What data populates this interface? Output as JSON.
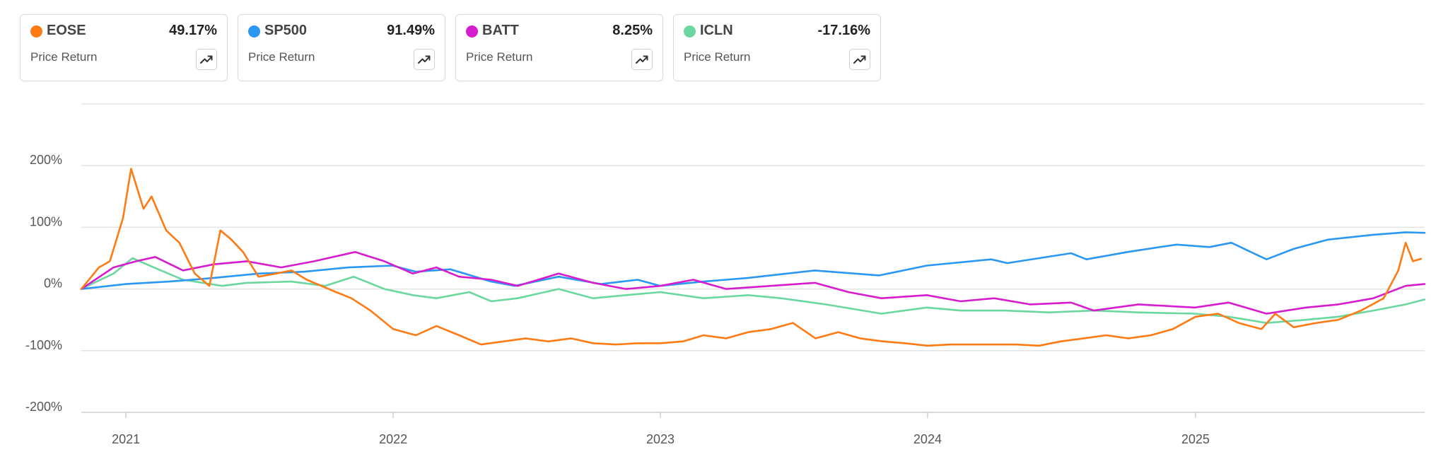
{
  "cards": [
    {
      "ticker": "EOSE",
      "value": "49.17%",
      "label": "Price Return",
      "color": "#FF7A12",
      "icon": "trend-up-icon"
    },
    {
      "ticker": "SP500",
      "value": "91.49%",
      "label": "Price Return",
      "color": "#2A97F3",
      "icon": "trend-up-icon"
    },
    {
      "ticker": "BATT",
      "value": "8.25%",
      "label": "Price Return",
      "color": "#D61CCE",
      "icon": "trend-up-icon"
    },
    {
      "ticker": "ICLN",
      "value": "-17.16%",
      "label": "Price Return",
      "color": "#6BD7A0",
      "icon": "trend-up-icon"
    }
  ],
  "chart_data": {
    "type": "line",
    "title": "",
    "xlabel": "",
    "ylabel": "",
    "y_unit": "%",
    "ylim": [
      -200,
      300
    ],
    "y_ticks": [
      200,
      100,
      0,
      -100,
      -200
    ],
    "y_tick_labels": [
      "200%",
      "100%",
      "0%",
      "-100%",
      "-200%"
    ],
    "x_ticks": [
      "2021",
      "2022",
      "2023",
      "2024",
      "2025"
    ],
    "x_range": [
      "2020-11-01",
      "2025-11-10"
    ],
    "grid": true,
    "legend": "top cards",
    "series": [
      {
        "name": "EOSE",
        "color": "#FF7A12",
        "x": [
          "2020-11-01",
          "2020-11-25",
          "2020-12-10",
          "2020-12-28",
          "2021-01-08",
          "2021-01-25",
          "2021-02-05",
          "2021-02-25",
          "2021-03-15",
          "2021-04-05",
          "2021-04-25",
          "2021-05-10",
          "2021-05-25",
          "2021-06-10",
          "2021-07-01",
          "2021-07-25",
          "2021-08-15",
          "2021-09-05",
          "2021-09-25",
          "2021-10-15",
          "2021-11-05",
          "2021-12-01",
          "2022-01-01",
          "2022-02-01",
          "2022-03-01",
          "2022-04-01",
          "2022-05-01",
          "2022-06-01",
          "2022-07-01",
          "2022-08-01",
          "2022-09-01",
          "2022-10-01",
          "2022-11-01",
          "2022-12-01",
          "2023-01-01",
          "2023-02-01",
          "2023-03-01",
          "2023-04-01",
          "2023-05-01",
          "2023-06-01",
          "2023-07-01",
          "2023-08-01",
          "2023-09-01",
          "2023-10-01",
          "2023-11-01",
          "2023-12-01",
          "2024-01-01",
          "2024-02-01",
          "2024-03-01",
          "2024-04-01",
          "2024-05-01",
          "2024-06-01",
          "2024-07-01",
          "2024-08-01",
          "2024-09-01",
          "2024-10-01",
          "2024-11-01",
          "2024-12-01",
          "2025-01-01",
          "2025-02-01",
          "2025-03-01",
          "2025-04-01",
          "2025-04-20",
          "2025-05-15",
          "2025-06-15",
          "2025-07-15",
          "2025-08-15",
          "2025-09-15",
          "2025-10-05",
          "2025-10-15",
          "2025-10-25",
          "2025-11-05"
        ],
        "y": [
          0,
          35,
          45,
          115,
          195,
          130,
          150,
          95,
          75,
          25,
          5,
          95,
          80,
          60,
          20,
          25,
          30,
          15,
          5,
          -5,
          -15,
          -35,
          -65,
          -75,
          -60,
          -75,
          -90,
          -85,
          -80,
          -85,
          -80,
          -88,
          -90,
          -88,
          -88,
          -85,
          -75,
          -80,
          -70,
          -65,
          -55,
          -80,
          -70,
          -80,
          -85,
          -88,
          -92,
          -90,
          -90,
          -90,
          -90,
          -92,
          -85,
          -80,
          -75,
          -80,
          -75,
          -65,
          -45,
          -40,
          -55,
          -65,
          -40,
          -62,
          -55,
          -50,
          -35,
          -15,
          30,
          75,
          45,
          49
        ]
      },
      {
        "name": "SP500",
        "color": "#2A97F3",
        "x": [
          "2020-11-01",
          "2021-01-01",
          "2021-03-01",
          "2021-05-01",
          "2021-07-01",
          "2021-09-01",
          "2021-11-01",
          "2021-12-31",
          "2022-02-01",
          "2022-03-20",
          "2022-05-15",
          "2022-06-16",
          "2022-08-15",
          "2022-10-12",
          "2022-12-01",
          "2023-01-01",
          "2023-03-01",
          "2023-05-01",
          "2023-07-31",
          "2023-10-27",
          "2023-12-31",
          "2024-03-28",
          "2024-04-19",
          "2024-07-15",
          "2024-08-05",
          "2024-09-30",
          "2024-12-06",
          "2025-01-20",
          "2025-02-19",
          "2025-04-08",
          "2025-05-15",
          "2025-07-01",
          "2025-09-01",
          "2025-10-15",
          "2025-11-10"
        ],
        "y": [
          0,
          8,
          12,
          18,
          25,
          28,
          35,
          38,
          28,
          32,
          12,
          5,
          20,
          8,
          15,
          5,
          12,
          18,
          30,
          22,
          38,
          48,
          42,
          58,
          48,
          60,
          72,
          68,
          75,
          48,
          65,
          80,
          88,
          92,
          91
        ]
      },
      {
        "name": "BATT",
        "color": "#D61CCE",
        "x": [
          "2020-11-01",
          "2020-12-15",
          "2021-01-15",
          "2021-02-10",
          "2021-03-20",
          "2021-05-01",
          "2021-06-15",
          "2021-08-01",
          "2021-09-15",
          "2021-11-10",
          "2021-12-20",
          "2022-01-28",
          "2022-03-01",
          "2022-04-01",
          "2022-05-15",
          "2022-06-20",
          "2022-08-15",
          "2022-10-01",
          "2022-11-15",
          "2023-01-01",
          "2023-02-15",
          "2023-04-01",
          "2023-06-01",
          "2023-07-31",
          "2023-09-15",
          "2023-10-30",
          "2023-12-31",
          "2024-02-15",
          "2024-04-01",
          "2024-05-20",
          "2024-07-15",
          "2024-08-15",
          "2024-10-15",
          "2024-12-31",
          "2025-02-15",
          "2025-04-08",
          "2025-06-01",
          "2025-07-15",
          "2025-09-01",
          "2025-10-15",
          "2025-11-10"
        ],
        "y": [
          0,
          35,
          45,
          52,
          30,
          40,
          45,
          35,
          45,
          60,
          45,
          25,
          35,
          20,
          15,
          5,
          25,
          10,
          0,
          5,
          15,
          0,
          5,
          10,
          -5,
          -15,
          -10,
          -20,
          -15,
          -25,
          -22,
          -35,
          -25,
          -30,
          -22,
          -40,
          -30,
          -25,
          -15,
          5,
          8
        ]
      },
      {
        "name": "ICLN",
        "color": "#6BD7A0",
        "x": [
          "2020-11-01",
          "2020-12-15",
          "2021-01-10",
          "2021-02-08",
          "2021-03-20",
          "2021-05-12",
          "2021-06-15",
          "2021-08-15",
          "2021-09-30",
          "2021-11-08",
          "2021-12-20",
          "2022-01-28",
          "2022-03-01",
          "2022-04-15",
          "2022-05-15",
          "2022-06-20",
          "2022-08-15",
          "2022-10-01",
          "2022-11-15",
          "2023-01-01",
          "2023-03-01",
          "2023-05-01",
          "2023-06-15",
          "2023-08-15",
          "2023-10-30",
          "2023-12-31",
          "2024-02-15",
          "2024-04-15",
          "2024-06-15",
          "2024-08-15",
          "2024-10-15",
          "2024-12-31",
          "2025-02-15",
          "2025-04-08",
          "2025-06-01",
          "2025-07-15",
          "2025-09-01",
          "2025-10-15",
          "2025-11-10"
        ],
        "y": [
          0,
          25,
          50,
          35,
          15,
          5,
          10,
          12,
          5,
          20,
          0,
          -10,
          -15,
          -5,
          -20,
          -15,
          0,
          -15,
          -10,
          -5,
          -15,
          -10,
          -15,
          -25,
          -40,
          -30,
          -35,
          -35,
          -38,
          -35,
          -38,
          -40,
          -45,
          -55,
          -50,
          -45,
          -35,
          -25,
          -17
        ]
      }
    ]
  }
}
